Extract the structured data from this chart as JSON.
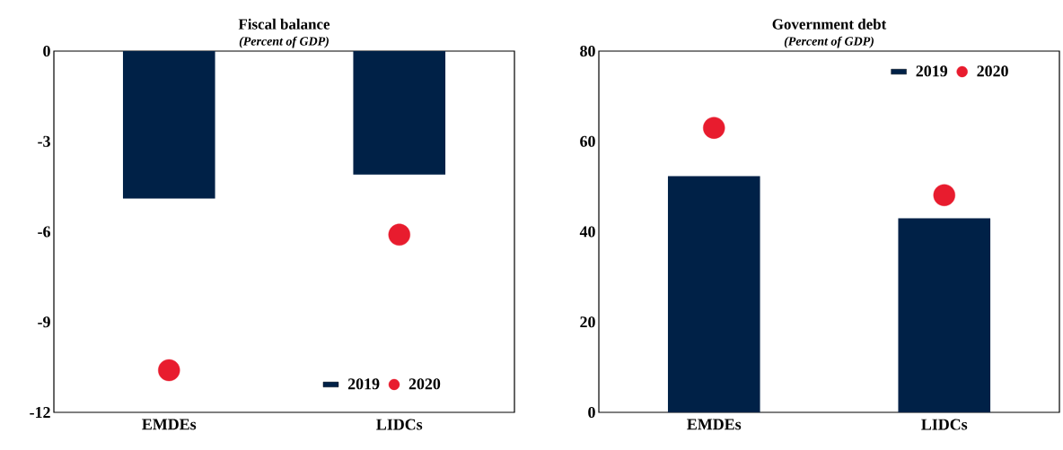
{
  "chart_data": [
    {
      "type": "bar",
      "title": "Fiscal balance",
      "subtitle": "(Percent of GDP)",
      "categories": [
        "EMDEs",
        "LIDCs"
      ],
      "ylim": [
        -12,
        0
      ],
      "yticks": [
        0,
        -3,
        -6,
        -9,
        -12
      ],
      "legend": "bottom right",
      "series": [
        {
          "name": "2019",
          "color": "#002147",
          "values": [
            -4.9,
            -4.1
          ]
        },
        {
          "name": "2020",
          "type": "scatter",
          "marker": "circle",
          "color": "#e81c2e",
          "values": [
            -10.6,
            -6.1
          ]
        }
      ]
    },
    {
      "type": "bar",
      "title": "Government debt",
      "subtitle": "(Percent of GDP)",
      "categories": [
        "EMDEs",
        "LIDCs"
      ],
      "ylim": [
        0,
        80
      ],
      "yticks": [
        0,
        20,
        40,
        60,
        80
      ],
      "legend": "top right",
      "series": [
        {
          "name": "2019",
          "color": "#002147",
          "values": [
            52.3,
            43.0
          ]
        },
        {
          "name": "2020",
          "type": "scatter",
          "marker": "circle",
          "color": "#e81c2e",
          "values": [
            63.0,
            48.1
          ]
        }
      ]
    }
  ]
}
